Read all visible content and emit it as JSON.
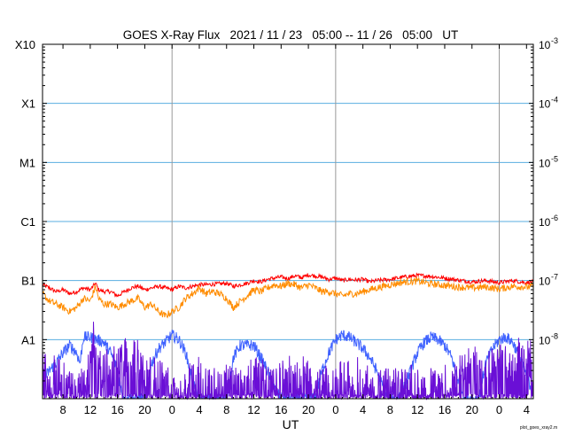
{
  "chart_data": {
    "type": "line",
    "title": "GOES X-Ray Flux   2021 / 11 / 23   05:00 -- 11 / 26   05:00   UT",
    "xlabel": "UT",
    "ylabel": "",
    "x_range_hours": [
      5,
      77
    ],
    "x_ticks": [
      {
        "h": 8,
        "label": "8"
      },
      {
        "h": 12,
        "label": "12"
      },
      {
        "h": 16,
        "label": "16"
      },
      {
        "h": 20,
        "label": "20"
      },
      {
        "h": 24,
        "label": "0"
      },
      {
        "h": 28,
        "label": "4"
      },
      {
        "h": 32,
        "label": "8"
      },
      {
        "h": 36,
        "label": "12"
      },
      {
        "h": 40,
        "label": "16"
      },
      {
        "h": 44,
        "label": "20"
      },
      {
        "h": 48,
        "label": "0"
      },
      {
        "h": 52,
        "label": "4"
      },
      {
        "h": 56,
        "label": "8"
      },
      {
        "h": 60,
        "label": "12"
      },
      {
        "h": 64,
        "label": "16"
      },
      {
        "h": 68,
        "label": "20"
      },
      {
        "h": 72,
        "label": "0"
      },
      {
        "h": 76,
        "label": "4"
      }
    ],
    "day_boundaries_hours": [
      24,
      48,
      72
    ],
    "y_scale": "log",
    "ylim": [
      1e-09,
      0.001
    ],
    "y_left_ticks": [
      {
        "exp": -8,
        "label": "A1"
      },
      {
        "exp": -7,
        "label": "B1"
      },
      {
        "exp": -6,
        "label": "C1"
      },
      {
        "exp": -5,
        "label": "M1"
      },
      {
        "exp": -4,
        "label": "X1"
      },
      {
        "exp": -3,
        "label": "X10"
      }
    ],
    "y_right_ticks": [
      {
        "exp": -8,
        "base": "10",
        "sup": "-8"
      },
      {
        "exp": -7,
        "base": "10",
        "sup": "-7"
      },
      {
        "exp": -6,
        "base": "10",
        "sup": "-6"
      },
      {
        "exp": -5,
        "base": "10",
        "sup": "-5"
      },
      {
        "exp": -4,
        "base": "10",
        "sup": "-4"
      },
      {
        "exp": -3,
        "base": "10",
        "sup": "-3"
      }
    ],
    "grid": true,
    "colors": {
      "grid": "#5aaee0",
      "day": "#999999",
      "red": "#ff0000",
      "orange": "#ff8c00",
      "blue": "#3f62ff",
      "purple": "#6a0fd6"
    },
    "series": [
      {
        "color": "red",
        "x": [
          5,
          6,
          7,
          8,
          9,
          10,
          11,
          12,
          12.8,
          13.2,
          14,
          15,
          16,
          17,
          18,
          19,
          20,
          21,
          22,
          23,
          24,
          25,
          26,
          27,
          28,
          29,
          32,
          33,
          34,
          35,
          36,
          37,
          38,
          39,
          40,
          41,
          42,
          43,
          44,
          45,
          46,
          47,
          48,
          49,
          50,
          51,
          52,
          53,
          54,
          56,
          58,
          60,
          62,
          64,
          66,
          68,
          70,
          72,
          74,
          76,
          77
        ],
        "y": [
          8.5e-08,
          7.5e-08,
          6.5e-08,
          7e-08,
          6e-08,
          6.5e-08,
          7.5e-08,
          7e-08,
          9e-08,
          7e-08,
          6.5e-08,
          6.5e-08,
          5.5e-08,
          6.5e-08,
          7.5e-08,
          8e-08,
          7e-08,
          7.5e-08,
          8e-08,
          7.5e-08,
          7e-08,
          8e-08,
          7.5e-08,
          8e-08,
          8.5e-08,
          8.5e-08,
          9e-08,
          8e-08,
          8.5e-08,
          9e-08,
          1e-07,
          9.5e-08,
          1.05e-07,
          1.1e-07,
          1.15e-07,
          1.08e-07,
          1.2e-07,
          1.12e-07,
          1.25e-07,
          1.2e-07,
          1.15e-07,
          1.05e-07,
          1.1e-07,
          1e-07,
          1.05e-07,
          1.02e-07,
          1.05e-07,
          9.5e-08,
          1e-07,
          1.05e-07,
          1.15e-07,
          1.22e-07,
          1.18e-07,
          1.1e-07,
          1.02e-07,
          9.5e-08,
          1e-07,
          9.2e-08,
          1e-07,
          9.2e-08,
          9.5e-08
        ]
      },
      {
        "color": "orange",
        "x": [
          5,
          6,
          7,
          8,
          9,
          10,
          11,
          12,
          12.8,
          13.2,
          14,
          15,
          16,
          17,
          18,
          19,
          20,
          21,
          22,
          23,
          24,
          25,
          26,
          27,
          28,
          29,
          30,
          31,
          32,
          33,
          34,
          35,
          36,
          37,
          38,
          39,
          40,
          41,
          42,
          43,
          44,
          45,
          46,
          47,
          48,
          49,
          50,
          51,
          52,
          53,
          54,
          56,
          58,
          60,
          62,
          64,
          66,
          68,
          70,
          72,
          74,
          76,
          77
        ],
        "y": [
          6e-08,
          4.5e-08,
          4e-08,
          3.5e-08,
          3e-08,
          3.5e-08,
          5e-08,
          4.5e-08,
          8e-08,
          5e-08,
          4e-08,
          4e-08,
          3.5e-08,
          4e-08,
          4.5e-08,
          5e-08,
          3.5e-08,
          4e-08,
          3e-08,
          2.5e-08,
          3e-08,
          3.5e-08,
          5e-08,
          6e-08,
          7.5e-08,
          6e-08,
          6.5e-08,
          6e-08,
          5e-08,
          3.5e-08,
          4.5e-08,
          5.5e-08,
          7e-08,
          6.5e-08,
          7.5e-08,
          8.5e-08,
          8e-08,
          9e-08,
          8.5e-08,
          7.5e-08,
          8.5e-08,
          7.5e-08,
          6.5e-08,
          6.5e-08,
          6e-08,
          5.5e-08,
          6e-08,
          6e-08,
          6.5e-08,
          7e-08,
          7.5e-08,
          8.5e-08,
          9.5e-08,
          9.8e-08,
          8.8e-08,
          8.3e-08,
          7.8e-08,
          7.5e-08,
          7.8e-08,
          7.2e-08,
          8e-08,
          7.8e-08,
          8e-08
        ]
      },
      {
        "color": "blue",
        "x": [
          5,
          6,
          7,
          8,
          9,
          10,
          10.5,
          11,
          12,
          13,
          14,
          15,
          16,
          16.5,
          17,
          18,
          19,
          20,
          21,
          22,
          23,
          24,
          25,
          26,
          26.5,
          27,
          28,
          29,
          32,
          33,
          34,
          35,
          36,
          37,
          38,
          39,
          40,
          41,
          42,
          43,
          44,
          45,
          46,
          47,
          48,
          49,
          50,
          51,
          52,
          53,
          54,
          55,
          56,
          57,
          58,
          59,
          60,
          61,
          62,
          63,
          64,
          65,
          66,
          67,
          68,
          69,
          70,
          71,
          72,
          73,
          74,
          75,
          76,
          77
        ],
        "y": [
          2e-09,
          3e-09,
          4e-09,
          6e-09,
          8e-09,
          6e-09,
          4e-09,
          1.1e-08,
          1.1e-08,
          1e-08,
          9e-09,
          6e-09,
          3e-09,
          1.5e-09,
          1e-09,
          1e-09,
          1e-09,
          1e-09,
          4e-09,
          7e-09,
          9e-09,
          1.2e-08,
          1e-08,
          6e-09,
          3.5e-09,
          2e-09,
          1e-09,
          1e-09,
          1e-09,
          5e-09,
          8e-09,
          8e-09,
          8e-09,
          5e-09,
          3e-09,
          1.5e-09,
          1e-09,
          1e-09,
          1e-09,
          1e-09,
          1e-09,
          1e-09,
          3e-09,
          6e-09,
          1e-08,
          1.2e-08,
          1.1e-08,
          9e-09,
          7e-09,
          5e-09,
          3e-09,
          1.5e-09,
          1e-09,
          1e-09,
          1.5e-09,
          3e-09,
          6e-09,
          9e-09,
          1.1e-08,
          1e-08,
          8e-09,
          5e-09,
          2e-09,
          1e-09,
          1e-09,
          1e-09,
          4e-09,
          7e-09,
          1e-08,
          1.1e-08,
          9e-09,
          5e-09,
          2.5e-09,
          1.2e-09
        ]
      },
      {
        "color": "purple",
        "x": [
          5,
          6,
          7,
          8,
          9,
          10,
          11,
          12,
          12.5,
          13,
          14,
          15,
          16,
          17,
          18,
          19,
          20,
          21,
          22,
          23,
          24,
          25,
          26,
          27,
          28,
          29,
          30,
          31,
          32,
          33,
          34,
          35,
          36,
          37,
          38,
          39,
          40,
          41,
          42,
          43,
          44,
          45,
          46,
          47,
          48,
          49,
          50,
          51,
          52,
          53,
          54,
          55,
          56,
          57,
          58,
          59,
          60,
          61,
          62,
          63,
          64,
          65,
          66,
          67,
          68,
          69,
          70,
          71,
          72,
          73,
          74,
          75,
          76,
          77
        ],
        "y": [
          3e-09,
          2.5e-09,
          3e-09,
          2e-09,
          1.8e-09,
          1e-09,
          2e-09,
          3e-09,
          1e-08,
          3e-09,
          3e-09,
          3.5e-09,
          3.5e-09,
          5e-09,
          4.5e-09,
          5e-09,
          3e-09,
          2.5e-09,
          2e-09,
          2e-09,
          1.2e-09,
          1.5e-09,
          1.5e-09,
          2e-09,
          2.5e-09,
          2e-09,
          1.5e-09,
          1.8e-09,
          1.8e-09,
          1.5e-09,
          1.5e-09,
          2e-09,
          2.5e-09,
          2.5e-09,
          1.5e-09,
          1.5e-09,
          2e-09,
          2.5e-09,
          2e-09,
          2.5e-09,
          2e-09,
          1.5e-09,
          1.5e-09,
          1.8e-09,
          1.5e-09,
          2.2e-09,
          2e-09,
          2.5e-09,
          2e-09,
          1.5e-09,
          1.5e-09,
          1.5e-09,
          1.5e-09,
          1.5e-09,
          1.5e-09,
          1.8e-09,
          1.5e-09,
          1.5e-09,
          1.5e-09,
          1.5e-09,
          1.8e-09,
          2e-09,
          2.5e-09,
          3e-09,
          3.5e-09,
          3.5e-09,
          3.5e-09,
          4e-09,
          4e-09,
          3.5e-09,
          4e-09,
          5e-09,
          5.5e-09,
          4e-09
        ]
      }
    ]
  },
  "footer_note": "plot_goes_xray2.m"
}
